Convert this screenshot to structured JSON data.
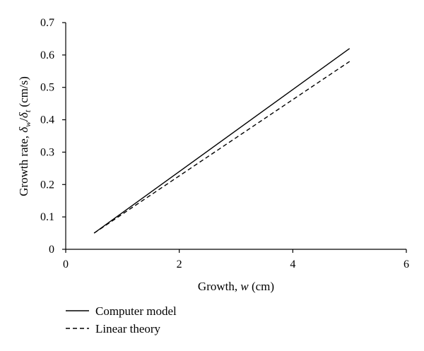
{
  "chart_data": {
    "type": "line",
    "xlabel": {
      "prefix": "Growth, ",
      "symbol": "w",
      "suffix": " (cm)"
    },
    "ylabel": {
      "prefix": "Growth rate, ",
      "delta": "δ",
      "num_sub": "w",
      "slash": "/",
      "den_sub": "t",
      "suffix": " (cm/s)"
    },
    "xlim": [
      0,
      6
    ],
    "ylim": [
      0,
      0.7
    ],
    "xticks": [
      0,
      2,
      4,
      6
    ],
    "yticks": [
      0,
      0.1,
      0.2,
      0.3,
      0.4,
      0.5,
      0.6,
      0.7
    ],
    "grid": false,
    "legend_position": "bottom-left, below plot",
    "series": [
      {
        "name": "Computer model",
        "style": "solid",
        "color": "#000000",
        "x": [
          0.5,
          5.0
        ],
        "y": [
          0.05,
          0.62
        ]
      },
      {
        "name": "Linear theory",
        "style": "dashed",
        "color": "#000000",
        "x": [
          0.5,
          5.0
        ],
        "y": [
          0.05,
          0.58
        ]
      }
    ]
  }
}
